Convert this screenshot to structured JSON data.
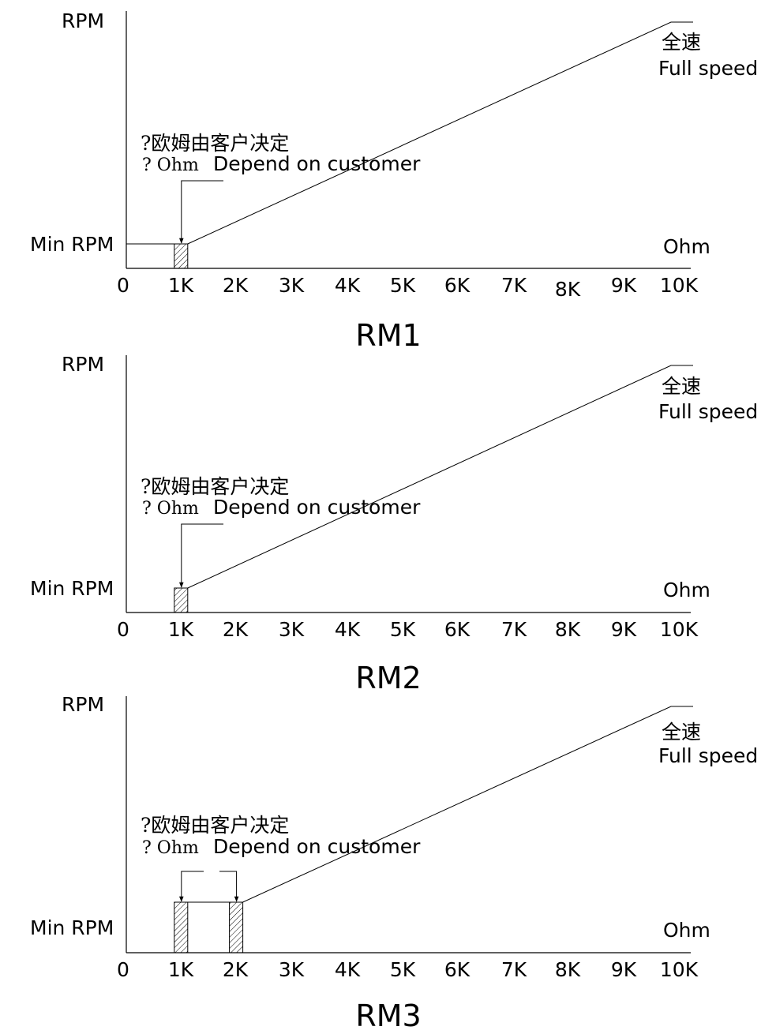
{
  "chart_data": [
    {
      "type": "line",
      "title": "RM1",
      "ylabel": "RPM",
      "xlabel": "Ohm",
      "y_min_label": "Min RPM",
      "x_ticks": [
        "0",
        "1K",
        "2K",
        "3K",
        "4K",
        "5K",
        "6K",
        "7K",
        "8K",
        "9K",
        "10K"
      ],
      "xlim": [
        0,
        10000
      ],
      "full_speed_cn": "全速",
      "full_speed_en": "Full speed",
      "note_cn": "?欧姆由客户决定",
      "note_q": "? Ohm",
      "note_en": "Depend on customer",
      "series": [
        {
          "x": [
            0,
            1000,
            1000,
            10000,
            10000
          ],
          "y": [
            0.1,
            0.1,
            0.1,
            1.0,
            1.0
          ]
        }
      ],
      "bands": [
        1000
      ]
    },
    {
      "type": "line",
      "title": "RM2",
      "ylabel": "RPM",
      "xlabel": "Ohm",
      "y_min_label": "Min RPM",
      "x_ticks": [
        "0",
        "1K",
        "2K",
        "3K",
        "4K",
        "5K",
        "6K",
        "7K",
        "8K",
        "9K",
        "10K"
      ],
      "xlim": [
        0,
        10000
      ],
      "full_speed_cn": "全速",
      "full_speed_en": "Full speed",
      "note_cn": "?欧姆由客户决定",
      "note_q": "? Ohm",
      "note_en": "Depend on customer",
      "series": [
        {
          "x": [
            1000,
            10000,
            10000
          ],
          "y": [
            0.1,
            1.0,
            1.0
          ]
        }
      ],
      "bands": [
        1000
      ]
    },
    {
      "type": "line",
      "title": "RM3",
      "ylabel": "RPM",
      "xlabel": "Ohm",
      "y_min_label": "Min RPM",
      "x_ticks": [
        "0",
        "1K",
        "2K",
        "3K",
        "4K",
        "5K",
        "6K",
        "7K",
        "8K",
        "9K",
        "10K"
      ],
      "xlim": [
        0,
        10000
      ],
      "full_speed_cn": "全速",
      "full_speed_en": "Full speed",
      "note_cn": "?欧姆由客户决定",
      "note_q": "? Ohm",
      "note_en": "Depend on customer",
      "series": [
        {
          "x": [
            1000,
            2000,
            2000,
            10000,
            10000
          ],
          "y": [
            0.26,
            0.26,
            0.26,
            1.0,
            1.0
          ]
        }
      ],
      "bands": [
        1000,
        2000
      ]
    }
  ]
}
